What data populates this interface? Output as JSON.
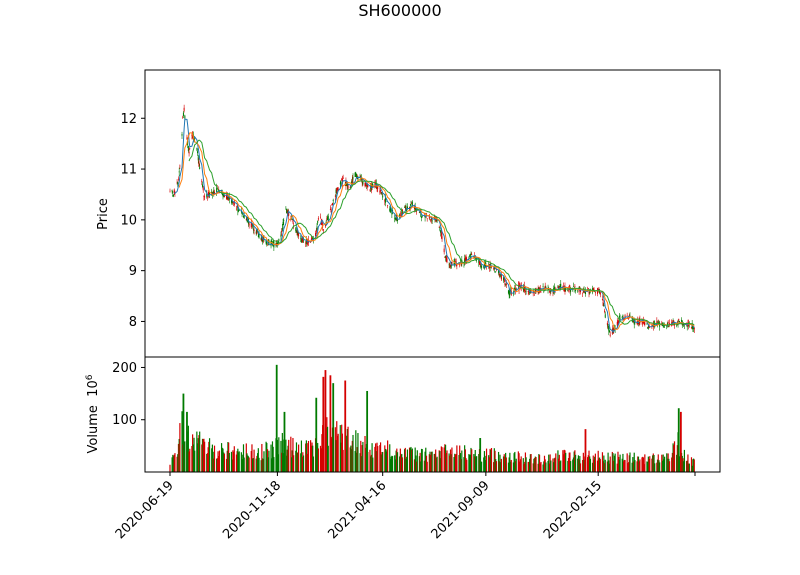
{
  "chart_data": {
    "type": "candlestick",
    "title": "SH600000",
    "up_color": "#d40000",
    "down_color": "#007a00",
    "ma_colors": [
      "#1f77b4",
      "#ff7f0e",
      "#2ca02c"
    ],
    "price_panel": {
      "ylabel": "Price",
      "ylim": [
        7.3,
        12.95
      ],
      "yticks": [
        8,
        9,
        10,
        11,
        12
      ],
      "trend": [
        [
          "2020-06-19",
          10.6
        ],
        [
          "2020-06-23",
          10.5
        ],
        [
          "2020-06-28",
          10.6
        ],
        [
          "2020-07-02",
          10.9
        ],
        [
          "2020-07-05",
          11.4
        ],
        [
          "2020-07-07",
          12.0
        ],
        [
          "2020-07-09",
          12.2
        ],
        [
          "2020-07-12",
          11.7
        ],
        [
          "2020-07-16",
          11.3
        ],
        [
          "2020-07-20",
          11.7
        ],
        [
          "2020-07-26",
          11.5
        ],
        [
          "2020-08-01",
          10.9
        ],
        [
          "2020-08-06",
          10.5
        ],
        [
          "2020-08-15",
          10.5
        ],
        [
          "2020-08-24",
          10.6
        ],
        [
          "2020-09-03",
          10.5
        ],
        [
          "2020-09-13",
          10.4
        ],
        [
          "2020-09-24",
          10.2
        ],
        [
          "2020-10-06",
          10.0
        ],
        [
          "2020-10-18",
          9.8
        ],
        [
          "2020-10-27",
          9.6
        ],
        [
          "2020-11-06",
          9.55
        ],
        [
          "2020-11-16",
          9.5
        ],
        [
          "2020-11-21",
          9.6
        ],
        [
          "2020-11-26",
          9.9
        ],
        [
          "2020-11-30",
          10.2
        ],
        [
          "2020-12-06",
          10.1
        ],
        [
          "2020-12-14",
          9.8
        ],
        [
          "2020-12-22",
          9.6
        ],
        [
          "2021-01-01",
          9.55
        ],
        [
          "2021-01-11",
          9.7
        ],
        [
          "2021-01-16",
          10.1
        ],
        [
          "2021-01-22",
          9.8
        ],
        [
          "2021-02-02",
          10.2
        ],
        [
          "2021-02-10",
          10.6
        ],
        [
          "2021-02-20",
          10.8
        ],
        [
          "2021-02-28",
          10.6
        ],
        [
          "2021-03-08",
          10.9
        ],
        [
          "2021-03-16",
          10.8
        ],
        [
          "2021-03-28",
          10.6
        ],
        [
          "2021-04-06",
          10.7
        ],
        [
          "2021-04-16",
          10.5
        ],
        [
          "2021-04-27",
          10.2
        ],
        [
          "2021-05-07",
          10.0
        ],
        [
          "2021-05-17",
          10.2
        ],
        [
          "2021-05-28",
          10.3
        ],
        [
          "2021-06-09",
          10.1
        ],
        [
          "2021-06-20",
          10.05
        ],
        [
          "2021-07-01",
          10.0
        ],
        [
          "2021-07-07",
          9.8
        ],
        [
          "2021-07-13",
          9.3
        ],
        [
          "2021-07-20",
          9.1
        ],
        [
          "2021-07-31",
          9.15
        ],
        [
          "2021-08-10",
          9.2
        ],
        [
          "2021-08-20",
          9.3
        ],
        [
          "2021-08-27",
          9.25
        ],
        [
          "2021-09-03",
          9.1
        ],
        [
          "2021-09-14",
          9.1
        ],
        [
          "2021-09-25",
          9.0
        ],
        [
          "2021-10-05",
          8.8
        ],
        [
          "2021-10-12",
          8.55
        ],
        [
          "2021-10-19",
          8.6
        ],
        [
          "2021-10-29",
          8.7
        ],
        [
          "2021-11-09",
          8.6
        ],
        [
          "2021-11-19",
          8.6
        ],
        [
          "2021-12-01",
          8.65
        ],
        [
          "2021-12-12",
          8.6
        ],
        [
          "2021-12-23",
          8.7
        ],
        [
          "2022-01-02",
          8.6
        ],
        [
          "2022-01-13",
          8.65
        ],
        [
          "2022-01-24",
          8.6
        ],
        [
          "2022-02-08",
          8.6
        ],
        [
          "2022-02-16",
          8.6
        ],
        [
          "2022-02-21",
          8.4
        ],
        [
          "2022-02-27",
          8.0
        ],
        [
          "2022-03-04",
          7.75
        ],
        [
          "2022-03-10",
          7.85
        ],
        [
          "2022-03-17",
          8.05
        ],
        [
          "2022-03-28",
          8.1
        ],
        [
          "2022-04-06",
          8.0
        ],
        [
          "2022-04-17",
          8.0
        ],
        [
          "2022-04-28",
          7.9
        ],
        [
          "2022-05-08",
          7.95
        ],
        [
          "2022-05-19",
          7.95
        ],
        [
          "2022-05-31",
          7.95
        ],
        [
          "2022-06-10",
          8.0
        ],
        [
          "2022-06-21",
          7.95
        ],
        [
          "2022-07-01",
          7.9
        ]
      ]
    },
    "volume_panel": {
      "ylabel": "Volume",
      "exponent_label": "10",
      "exponent": "6",
      "ylim": [
        0,
        220
      ],
      "yticks": [
        100,
        200
      ],
      "trend": [
        [
          "2020-06-19",
          22
        ],
        [
          "2020-06-28",
          28
        ],
        [
          "2020-07-04",
          80
        ],
        [
          "2020-07-10",
          95
        ],
        [
          "2020-07-16",
          70
        ],
        [
          "2020-07-25",
          60
        ],
        [
          "2020-08-08",
          50
        ],
        [
          "2020-08-20",
          45
        ],
        [
          "2020-09-10",
          42
        ],
        [
          "2020-10-01",
          40
        ],
        [
          "2020-10-24",
          40
        ],
        [
          "2020-11-12",
          44
        ],
        [
          "2020-11-22",
          55
        ],
        [
          "2020-12-03",
          50
        ],
        [
          "2020-12-22",
          52
        ],
        [
          "2021-01-10",
          52
        ],
        [
          "2021-01-22",
          70
        ],
        [
          "2021-02-05",
          85
        ],
        [
          "2021-02-20",
          68
        ],
        [
          "2021-03-10",
          58
        ],
        [
          "2021-04-01",
          48
        ],
        [
          "2021-04-25",
          44
        ],
        [
          "2021-05-20",
          36
        ],
        [
          "2021-06-20",
          33
        ],
        [
          "2021-07-15",
          40
        ],
        [
          "2021-08-10",
          38
        ],
        [
          "2021-09-09",
          34
        ],
        [
          "2021-10-05",
          33
        ],
        [
          "2021-10-28",
          28
        ],
        [
          "2021-11-25",
          25
        ],
        [
          "2021-12-25",
          33
        ],
        [
          "2022-01-20",
          30
        ],
        [
          "2022-02-15",
          30
        ],
        [
          "2022-03-10",
          28
        ],
        [
          "2022-04-10",
          27
        ],
        [
          "2022-05-10",
          26
        ],
        [
          "2022-05-28",
          32
        ],
        [
          "2022-06-08",
          55
        ],
        [
          "2022-06-18",
          28
        ],
        [
          "2022-07-01",
          18
        ]
      ],
      "spikes": [
        [
          "2020-07-08",
          150,
          "down"
        ],
        [
          "2020-07-13",
          115,
          "down"
        ],
        [
          "2020-11-17",
          205,
          "down"
        ],
        [
          "2020-11-28",
          115,
          "down"
        ],
        [
          "2021-01-12",
          142,
          "down"
        ],
        [
          "2021-01-22",
          182,
          "up"
        ],
        [
          "2021-01-25",
          195,
          "up"
        ],
        [
          "2021-02-01",
          185,
          "up"
        ],
        [
          "2021-02-05",
          170,
          "down"
        ],
        [
          "2021-02-22",
          175,
          "up"
        ],
        [
          "2021-03-25",
          155,
          "down"
        ],
        [
          "2021-09-01",
          65,
          "down"
        ],
        [
          "2022-01-28",
          82,
          "up"
        ],
        [
          "2022-06-09",
          122,
          "down"
        ],
        [
          "2022-06-12",
          115,
          "up"
        ]
      ]
    },
    "x_axis": {
      "start": "2020-06-19",
      "end": "2022-07-02",
      "tick_labels": [
        "2020-06-19",
        "2020-11-18",
        "2021-04-16",
        "2021-09-09",
        "2022-02-15"
      ]
    }
  }
}
